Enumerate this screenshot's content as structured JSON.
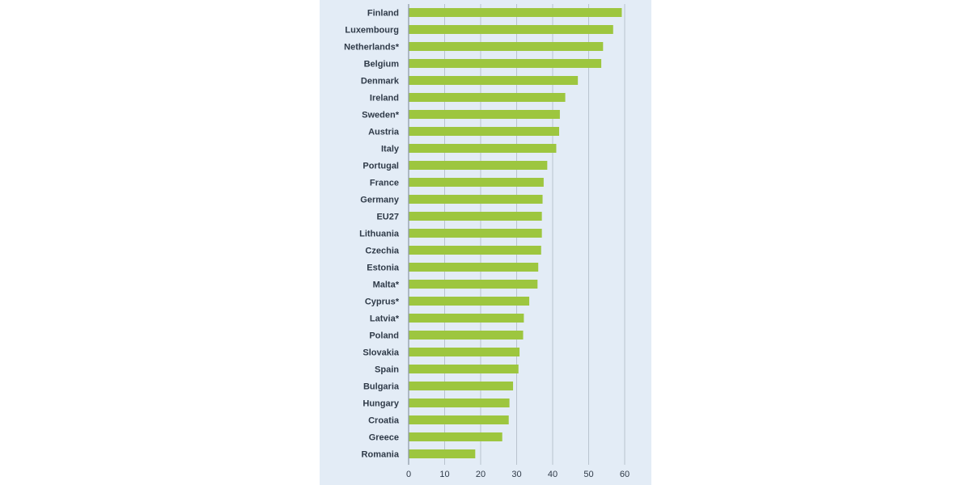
{
  "chart_data": {
    "type": "bar",
    "orientation": "horizontal",
    "categories": [
      "Finland",
      "Luxembourg",
      "Netherlands*",
      "Belgium",
      "Denmark",
      "Ireland",
      "Sweden*",
      "Austria",
      "Italy",
      "Portugal",
      "France",
      "Germany",
      "EU27",
      "Lithuania",
      "Czechia",
      "Estonia",
      "Malta*",
      "Cyprus*",
      "Latvia*",
      "Poland",
      "Slovakia",
      "Spain",
      "Bulgaria",
      "Hungary",
      "Croatia",
      "Greece",
      "Romania"
    ],
    "values": [
      59.2,
      56.8,
      54.0,
      53.5,
      47.0,
      43.5,
      42.0,
      41.8,
      41.0,
      38.5,
      37.5,
      37.2,
      37.0,
      37.0,
      36.8,
      36.0,
      35.8,
      33.5,
      32.0,
      31.8,
      30.8,
      30.5,
      29.0,
      28.0,
      27.8,
      26.0,
      18.5
    ],
    "xticks": [
      0,
      10,
      20,
      30,
      40,
      50,
      60
    ],
    "xlim": [
      0,
      65
    ],
    "grid": true,
    "bar_color": "#9dc63f",
    "background_color": "#e3ecf6",
    "title": "",
    "xlabel": "",
    "ylabel": ""
  }
}
